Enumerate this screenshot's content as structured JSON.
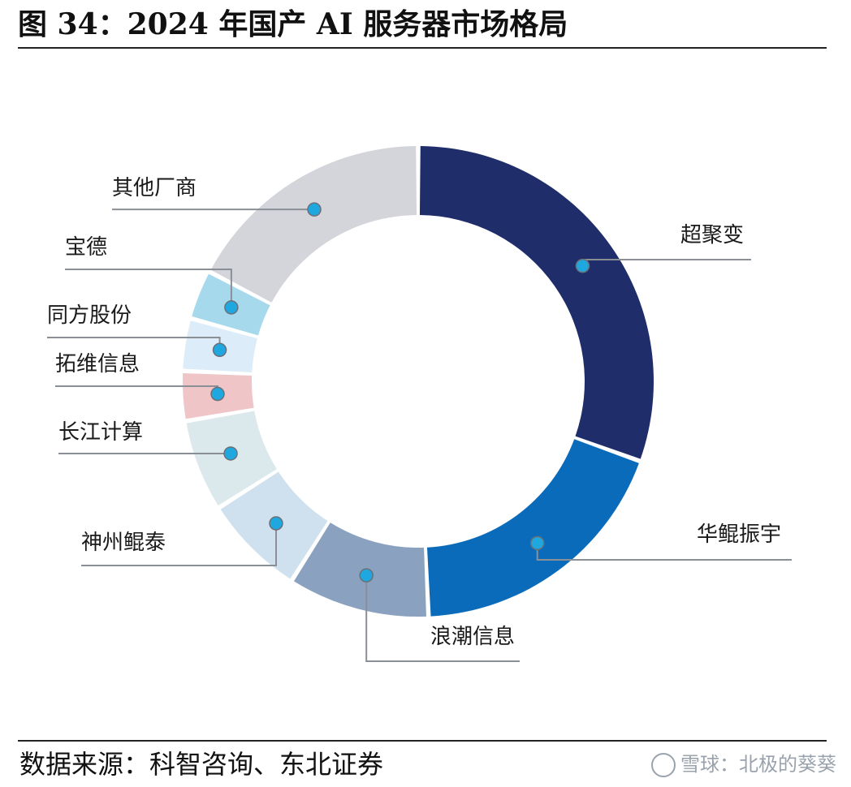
{
  "figure": {
    "title": "图 34：2024 年国产 AI 服务器市场格局",
    "source": "数据来源：科智咨询、东北证券",
    "watermark": "雪球：北极的葵葵"
  },
  "chart_data": {
    "type": "pie",
    "variant": "donut",
    "categories": [
      "超聚变",
      "华鲲振宇",
      "浪潮信息",
      "神州鲲泰",
      "长江计算",
      "拓维信息",
      "同方股份",
      "宝德",
      "其他厂商"
    ],
    "series": [
      {
        "values": [
          30.5,
          18.8,
          9.7,
          7.0,
          6.3,
          3.4,
          3.6,
          3.4,
          17.3
        ]
      }
    ],
    "colors": [
      "#1f2d6b",
      "#0b6bbb",
      "#8aa2bf",
      "#cfe1ee",
      "#dbe8ec",
      "#efc5c8",
      "#dcecf8",
      "#a6d9ec",
      "#d3d5da"
    ],
    "label_marker_color": "#1fa7e0",
    "legend": "none"
  }
}
